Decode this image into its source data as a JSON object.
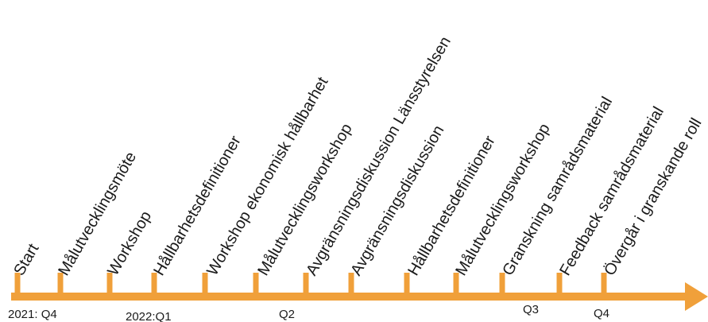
{
  "timeline": {
    "line_color": "#F0A03A",
    "text_color": "#1a1a1a",
    "milestones": [
      "Start",
      "Målutvecklingsmöte",
      "Workshop",
      "Hållbarhetsdefinitioner",
      "Workshop ekonomisk hållbarhet",
      "Målutvecklingsworkshop",
      "Avgränsningsdiskussion Länsstyrelsen",
      "Avgränsningsdiskussion",
      "Hållbarhetsdefinitioner",
      "Målutvecklingsworkshop",
      "Granskning samrådsmaterial",
      "Feedback samrådsmaterial",
      "Övergår i granskande roll"
    ],
    "periods": [
      "2021: Q4",
      "2022:Q1",
      "Q2",
      "Q3",
      "Q4"
    ]
  }
}
